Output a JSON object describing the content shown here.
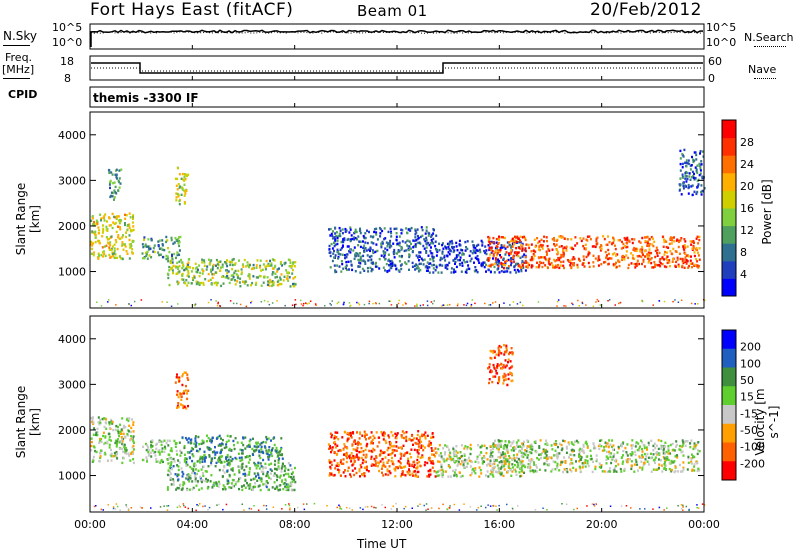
{
  "header": {
    "title": "Fort Hays East (fitACF)",
    "beam": "Beam 01",
    "date": "20/Feb/2012"
  },
  "top_panels": {
    "nsky_label": "N.Sky",
    "nsearch_label": "N.Search",
    "noise_ticks_left": [
      "10^5",
      "10^0"
    ],
    "noise_ticks_right": [
      "10^5",
      "10^0"
    ],
    "freq_label_1": "Freq.",
    "freq_label_2": "[MHz]",
    "freq_ticks": [
      "18",
      "8"
    ],
    "nave_label": "Nave",
    "nave_ticks": [
      "60",
      "0"
    ],
    "cpid_label": "CPID",
    "cpid_value": "themis -3300 IF"
  },
  "time_axis": {
    "label": "Time UT",
    "ticks": [
      "00:00",
      "04:00",
      "08:00",
      "12:00",
      "16:00",
      "20:00",
      "00:00"
    ]
  },
  "range_axis": {
    "label": "Slant Range [km]",
    "ticks": [
      "1000",
      "2000",
      "3000",
      "4000"
    ]
  },
  "chart_data": [
    {
      "type": "heatmap",
      "name": "power",
      "xlabel": "Time UT",
      "ylabel": "Slant Range [km]",
      "colorbar_label": "Power [dB]",
      "colorbar_ticks": [
        "4",
        "8",
        "12",
        "16",
        "20",
        "24",
        "28"
      ],
      "xlim": [
        0,
        24
      ],
      "ylim": [
        200,
        4500
      ],
      "colors": [
        "#0000ff",
        "#1f3fbf",
        "#2f6f8f",
        "#4f9f5f",
        "#7fcf3f",
        "#cfcf00",
        "#ffaf00",
        "#ff6f00",
        "#ff3000",
        "#ff0000"
      ],
      "clusters": [
        {
          "t": [
            0.0,
            1.7
          ],
          "r": [
            1300,
            2300
          ],
          "level": 0.55
        },
        {
          "t": [
            0.7,
            1.2
          ],
          "r": [
            2600,
            3300
          ],
          "level": 0.3
        },
        {
          "t": [
            2.0,
            3.5
          ],
          "r": [
            1300,
            1800
          ],
          "level": 0.35
        },
        {
          "t": [
            3.3,
            3.8
          ],
          "r": [
            2500,
            3300
          ],
          "level": 0.5
        },
        {
          "t": [
            3.0,
            8.0
          ],
          "r": [
            700,
            1300
          ],
          "level": 0.45
        },
        {
          "t": [
            9.3,
            13.5
          ],
          "r": [
            1000,
            2000
          ],
          "level": 0.2
        },
        {
          "t": [
            13.5,
            17.0
          ],
          "r": [
            1000,
            1700
          ],
          "level": 0.15
        },
        {
          "t": [
            15.5,
            23.8
          ],
          "r": [
            1100,
            1800
          ],
          "level": 0.8
        },
        {
          "t": [
            23.0,
            24.0
          ],
          "r": [
            2700,
            3700
          ],
          "level": 0.2
        }
      ]
    },
    {
      "type": "heatmap",
      "name": "velocity",
      "xlabel": "Time UT",
      "ylabel": "Slant Range [km]",
      "colorbar_label": "Velocity [m s^-1]",
      "colorbar_ticks": [
        "200",
        "100",
        "50",
        "15",
        "-15",
        "-50",
        "-100",
        "-200"
      ],
      "xlim": [
        0,
        24
      ],
      "ylim": [
        200,
        4500
      ],
      "colors": [
        "#0000ff",
        "#1f5fbf",
        "#3f8f3f",
        "#5fcf2f",
        "#c8c8c8",
        "#ffa000",
        "#ff6000",
        "#ff0000"
      ],
      "clusters": [
        {
          "t": [
            0.0,
            1.7
          ],
          "r": [
            1300,
            2300
          ],
          "level": 0.5
        },
        {
          "t": [
            2.0,
            3.5
          ],
          "r": [
            1300,
            1800
          ],
          "level": 0.45
        },
        {
          "t": [
            3.3,
            3.8
          ],
          "r": [
            2500,
            3300
          ],
          "level": 0.8
        },
        {
          "t": [
            3.0,
            8.0
          ],
          "r": [
            700,
            1300
          ],
          "level": 0.4
        },
        {
          "t": [
            3.5,
            7.5
          ],
          "r": [
            1300,
            1900
          ],
          "level": 0.3
        },
        {
          "t": [
            9.3,
            13.5
          ],
          "r": [
            1000,
            2000
          ],
          "level": 0.82
        },
        {
          "t": [
            13.5,
            17.0
          ],
          "r": [
            1000,
            1700
          ],
          "level": 0.5
        },
        {
          "t": [
            15.5,
            23.8
          ],
          "r": [
            1100,
            1800
          ],
          "level": 0.5
        },
        {
          "t": [
            15.5,
            16.5
          ],
          "r": [
            3000,
            3900
          ],
          "level": 0.85
        }
      ]
    }
  ]
}
